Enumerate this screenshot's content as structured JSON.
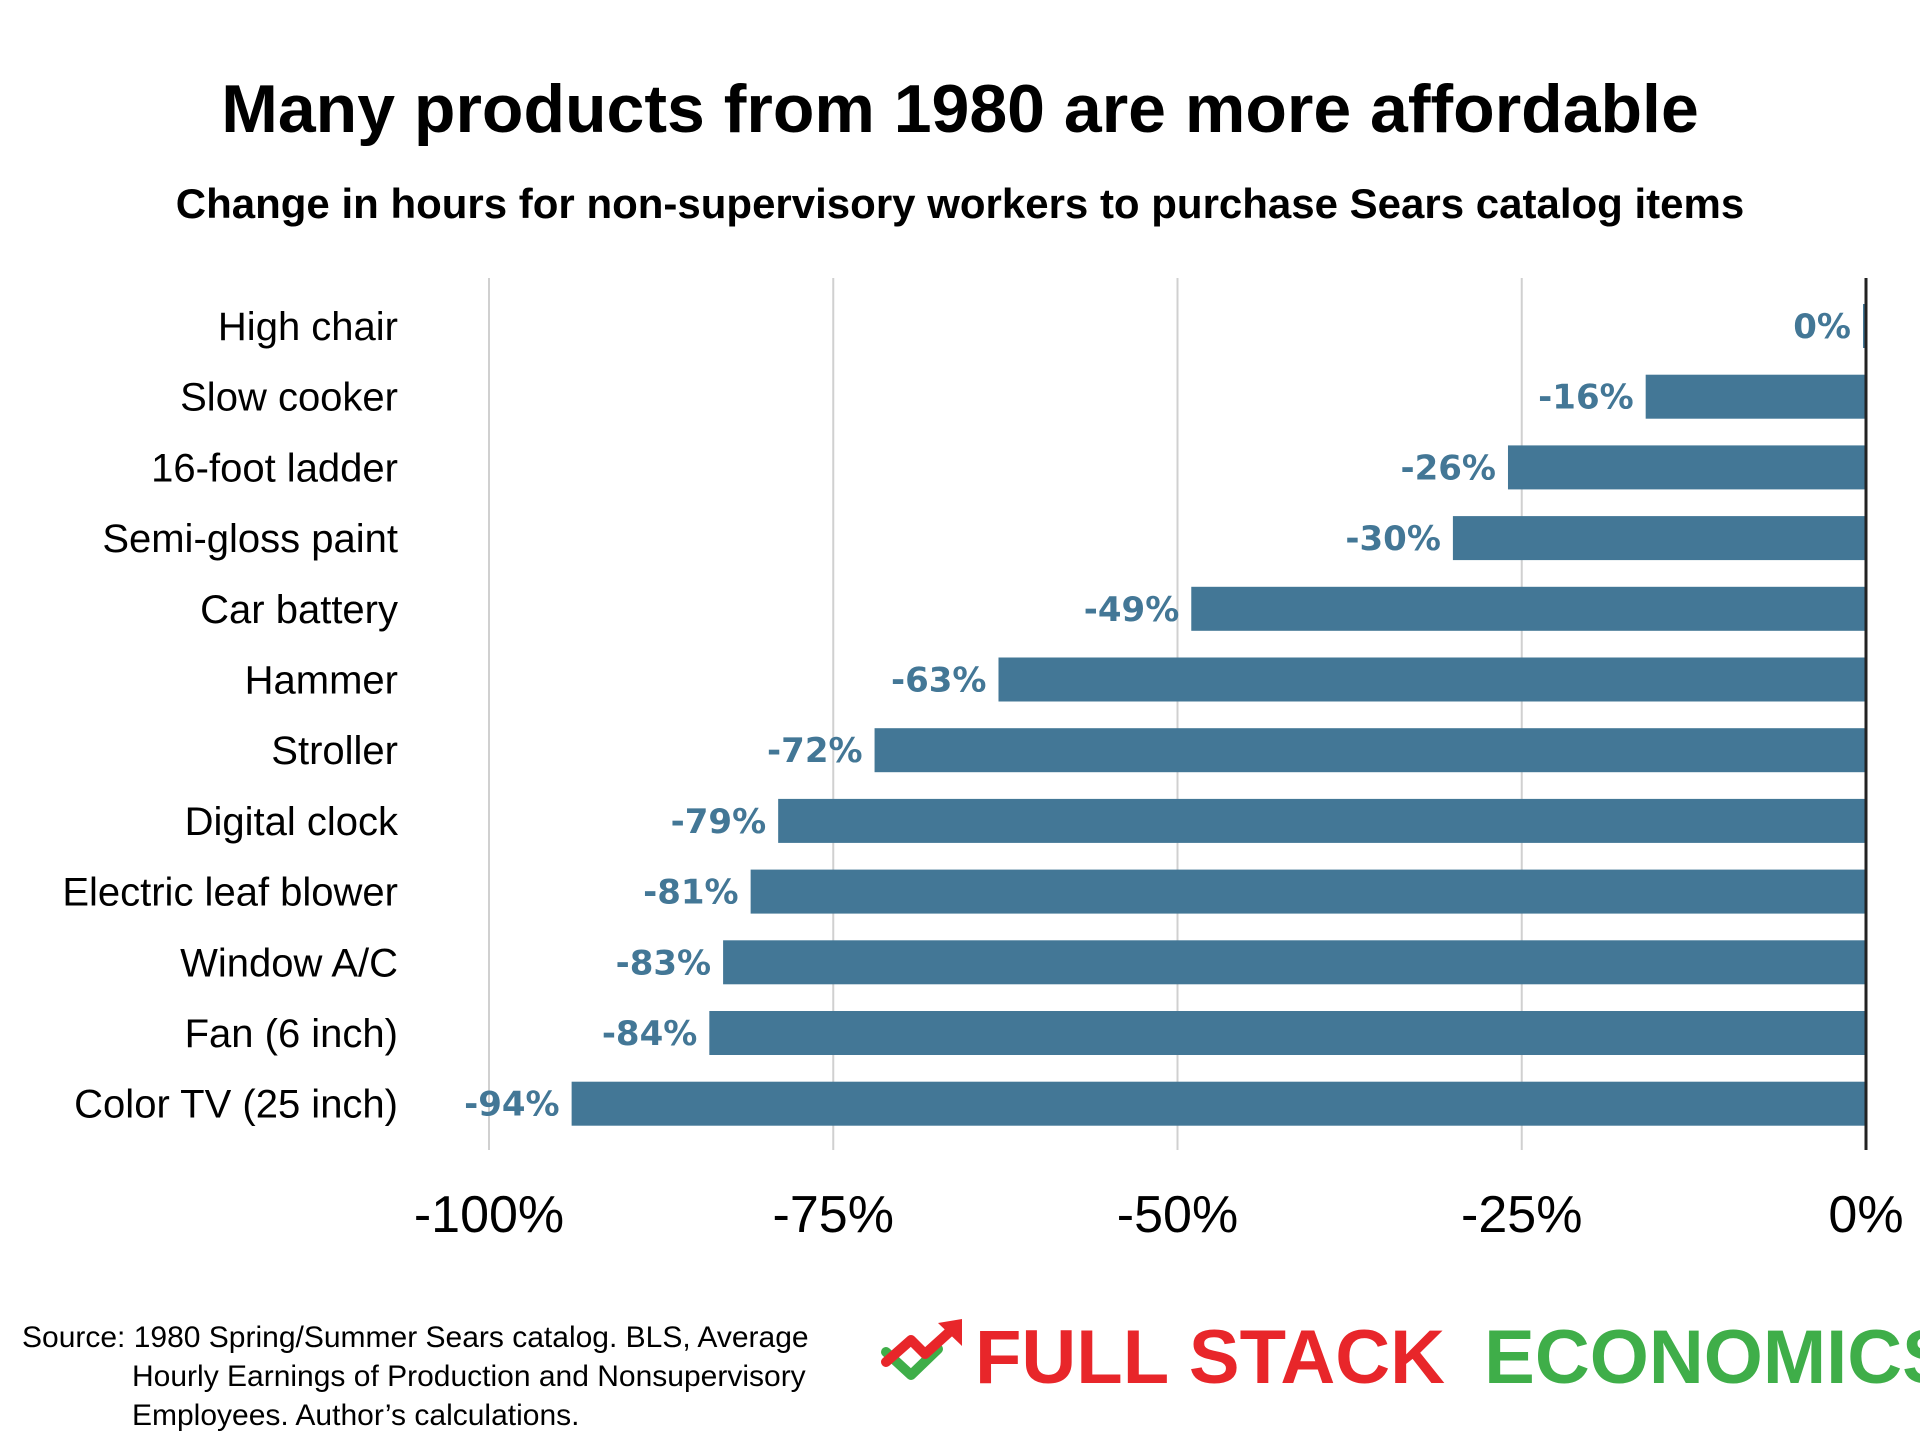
{
  "colors": {
    "bar": "#437796",
    "label": "#437796",
    "grid": "#d0d0d0",
    "axis": "#222222",
    "brand_red": "#e8262a",
    "brand_green": "#3fae49"
  },
  "chart_data": {
    "type": "bar",
    "orientation": "horizontal",
    "title": "Many products from 1980 are more affordable",
    "subtitle": "Change in hours for non-supervisory workers to purchase Sears catalog items",
    "categories": [
      "High chair",
      "Slow cooker",
      "16-foot ladder",
      "Semi-gloss paint",
      "Car battery",
      "Hammer",
      "Stroller",
      "Digital clock",
      "Electric leaf blower",
      "Window A/C",
      "Fan (6 inch)",
      "Color TV (25 inch)"
    ],
    "values": [
      0,
      -16,
      -26,
      -30,
      -49,
      -63,
      -72,
      -79,
      -81,
      -83,
      -84,
      -94
    ],
    "value_labels": [
      "0%",
      "-16%",
      "-26%",
      "-30%",
      "-49%",
      "-63%",
      "-72%",
      "-79%",
      "-81%",
      "-83%",
      "-84%",
      "-94%"
    ],
    "xlim": [
      -100,
      0
    ],
    "xticks": [
      -100,
      -75,
      -50,
      -25,
      0
    ],
    "xtick_labels": [
      "-100%",
      "-75%",
      "-50%",
      "-25%",
      "0%"
    ],
    "xlabel": "",
    "ylabel": "",
    "grid": "vertical"
  },
  "footer": {
    "source_lines": [
      "Source: 1980 Spring/Summer Sears catalog. BLS, Average",
      "Hourly Earnings of Production and Nonsupervisory",
      "Employees. Author’s calculations."
    ],
    "brand_part1": "FULL STACK",
    "brand_part2": "ECONOMICS",
    "logo_icon": "trending-up-arrow-icon"
  }
}
